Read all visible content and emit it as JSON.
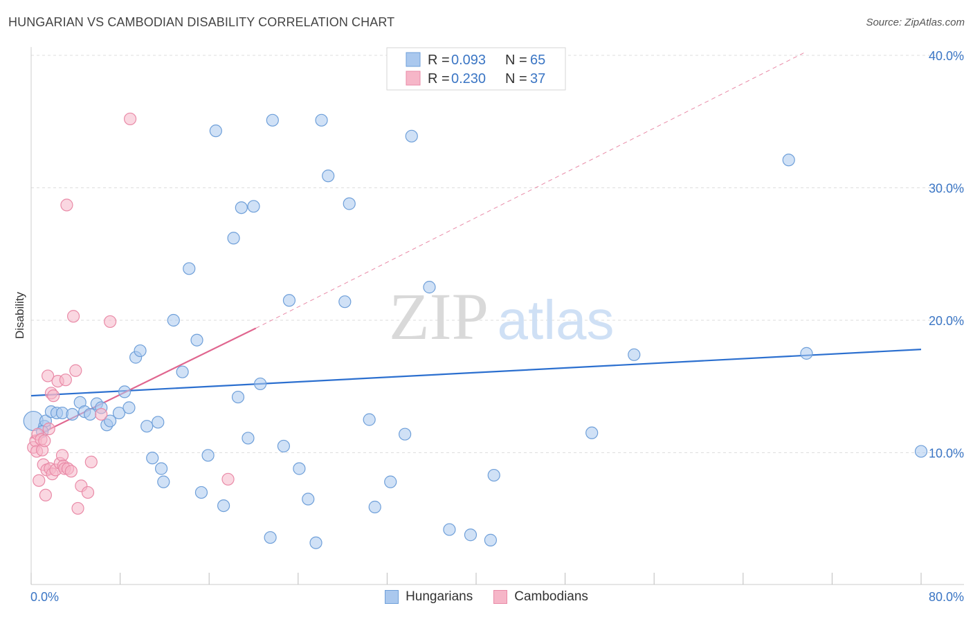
{
  "header": {
    "title": "HUNGARIAN VS CAMBODIAN DISABILITY CORRELATION CHART",
    "source": "Source: ZipAtlas.com"
  },
  "watermark": {
    "zip": "ZIP",
    "atlas": "atlas"
  },
  "colors": {
    "blue_fill": "#aac8ee",
    "blue_stroke": "#6e9fd9",
    "blue_line": "#2b6fcf",
    "pink_fill": "#f6b6c8",
    "pink_stroke": "#e98aa7",
    "pink_line": "#e0668f",
    "grid": "#dddddd",
    "tick_text": "#3a75c4"
  },
  "legend": {
    "entries": [
      {
        "r_label": "R =",
        "r_value": "0.093",
        "n_label": "N =",
        "n_value": "65",
        "color": "blue"
      },
      {
        "r_label": "R =",
        "r_value": "0.230",
        "n_label": "N =",
        "n_value": "37",
        "color": "pink"
      }
    ]
  },
  "bottom_legend": [
    "Hungarians",
    "Cambodians"
  ],
  "chart_data": {
    "type": "scatter",
    "title": "HUNGARIAN VS CAMBODIAN DISABILITY CORRELATION CHART",
    "xlabel": "",
    "ylabel": "Disability",
    "xlim": [
      0,
      80
    ],
    "ylim": [
      0,
      40
    ],
    "x_tick_labels": [
      "0.0%",
      "80.0%"
    ],
    "y_ticks": [
      10,
      20,
      30,
      40
    ],
    "y_tick_labels": [
      "10.0%",
      "20.0%",
      "30.0%",
      "40.0%"
    ],
    "grid": true,
    "series": [
      {
        "name": "Hungarians",
        "color": "blue",
        "trend": {
          "x0": 0,
          "y0": 14.3,
          "x1": 80,
          "y1": 17.8,
          "dashed_to": null
        },
        "points": [
          [
            0.2,
            12.4
          ],
          [
            1.2,
            12.0
          ],
          [
            1.3,
            12.4
          ],
          [
            1.8,
            13.1
          ],
          [
            2.3,
            13.0
          ],
          [
            2.8,
            13.0
          ],
          [
            3.7,
            12.9
          ],
          [
            4.4,
            13.8
          ],
          [
            4.8,
            13.1
          ],
          [
            5.3,
            12.9
          ],
          [
            5.9,
            13.7
          ],
          [
            6.3,
            13.4
          ],
          [
            6.8,
            12.1
          ],
          [
            7.1,
            12.4
          ],
          [
            7.9,
            13.0
          ],
          [
            8.4,
            14.6
          ],
          [
            8.8,
            13.4
          ],
          [
            9.4,
            17.2
          ],
          [
            9.8,
            17.7
          ],
          [
            10.4,
            12.0
          ],
          [
            10.9,
            9.6
          ],
          [
            11.4,
            12.3
          ],
          [
            11.7,
            8.8
          ],
          [
            11.9,
            7.8
          ],
          [
            12.8,
            20.0
          ],
          [
            13.6,
            16.1
          ],
          [
            14.2,
            23.9
          ],
          [
            14.9,
            18.5
          ],
          [
            15.3,
            7.0
          ],
          [
            15.9,
            9.8
          ],
          [
            16.6,
            34.3
          ],
          [
            17.3,
            6.0
          ],
          [
            18.2,
            26.2
          ],
          [
            18.6,
            14.2
          ],
          [
            18.9,
            28.5
          ],
          [
            19.5,
            11.1
          ],
          [
            20.0,
            28.6
          ],
          [
            20.6,
            15.2
          ],
          [
            21.5,
            3.6
          ],
          [
            21.7,
            35.1
          ],
          [
            22.7,
            10.5
          ],
          [
            23.2,
            21.5
          ],
          [
            24.1,
            8.8
          ],
          [
            24.9,
            6.5
          ],
          [
            25.6,
            3.2
          ],
          [
            26.1,
            35.1
          ],
          [
            26.7,
            30.9
          ],
          [
            28.2,
            21.4
          ],
          [
            28.6,
            28.8
          ],
          [
            30.4,
            12.5
          ],
          [
            30.9,
            5.9
          ],
          [
            32.3,
            7.8
          ],
          [
            33.6,
            11.4
          ],
          [
            34.2,
            33.9
          ],
          [
            35.8,
            22.5
          ],
          [
            37.6,
            4.2
          ],
          [
            39.5,
            3.8
          ],
          [
            41.3,
            3.4
          ],
          [
            41.6,
            8.3
          ],
          [
            50.4,
            11.5
          ],
          [
            54.2,
            17.4
          ],
          [
            68.1,
            32.1
          ],
          [
            69.7,
            17.5
          ],
          [
            80.0,
            10.1
          ],
          [
            1.0,
            11.6
          ]
        ]
      },
      {
        "name": "Cambodians",
        "color": "pink",
        "trend": {
          "x0": 0,
          "y0": 11.1,
          "x1": 20.2,
          "y1": 19.4,
          "dashed_to": [
            69.5,
            40.2
          ]
        },
        "points": [
          [
            0.2,
            10.4
          ],
          [
            0.4,
            10.9
          ],
          [
            0.5,
            10.1
          ],
          [
            0.6,
            11.4
          ],
          [
            0.7,
            7.9
          ],
          [
            0.9,
            11.0
          ],
          [
            1.0,
            10.2
          ],
          [
            1.1,
            9.1
          ],
          [
            1.2,
            10.9
          ],
          [
            1.3,
            6.8
          ],
          [
            1.4,
            8.7
          ],
          [
            1.5,
            15.8
          ],
          [
            1.6,
            11.8
          ],
          [
            1.7,
            8.8
          ],
          [
            1.8,
            14.5
          ],
          [
            1.9,
            8.4
          ],
          [
            2.0,
            14.3
          ],
          [
            2.2,
            8.7
          ],
          [
            2.4,
            15.4
          ],
          [
            2.6,
            9.2
          ],
          [
            2.8,
            9.8
          ],
          [
            2.9,
            9.0
          ],
          [
            3.0,
            8.8
          ],
          [
            3.1,
            15.5
          ],
          [
            3.2,
            28.7
          ],
          [
            3.3,
            8.8
          ],
          [
            3.6,
            8.6
          ],
          [
            3.8,
            20.3
          ],
          [
            4.0,
            16.2
          ],
          [
            4.2,
            5.8
          ],
          [
            4.5,
            7.5
          ],
          [
            5.1,
            7.0
          ],
          [
            5.4,
            9.3
          ],
          [
            6.3,
            12.9
          ],
          [
            7.1,
            19.9
          ],
          [
            8.9,
            35.2
          ],
          [
            17.7,
            8.0
          ]
        ]
      }
    ]
  }
}
